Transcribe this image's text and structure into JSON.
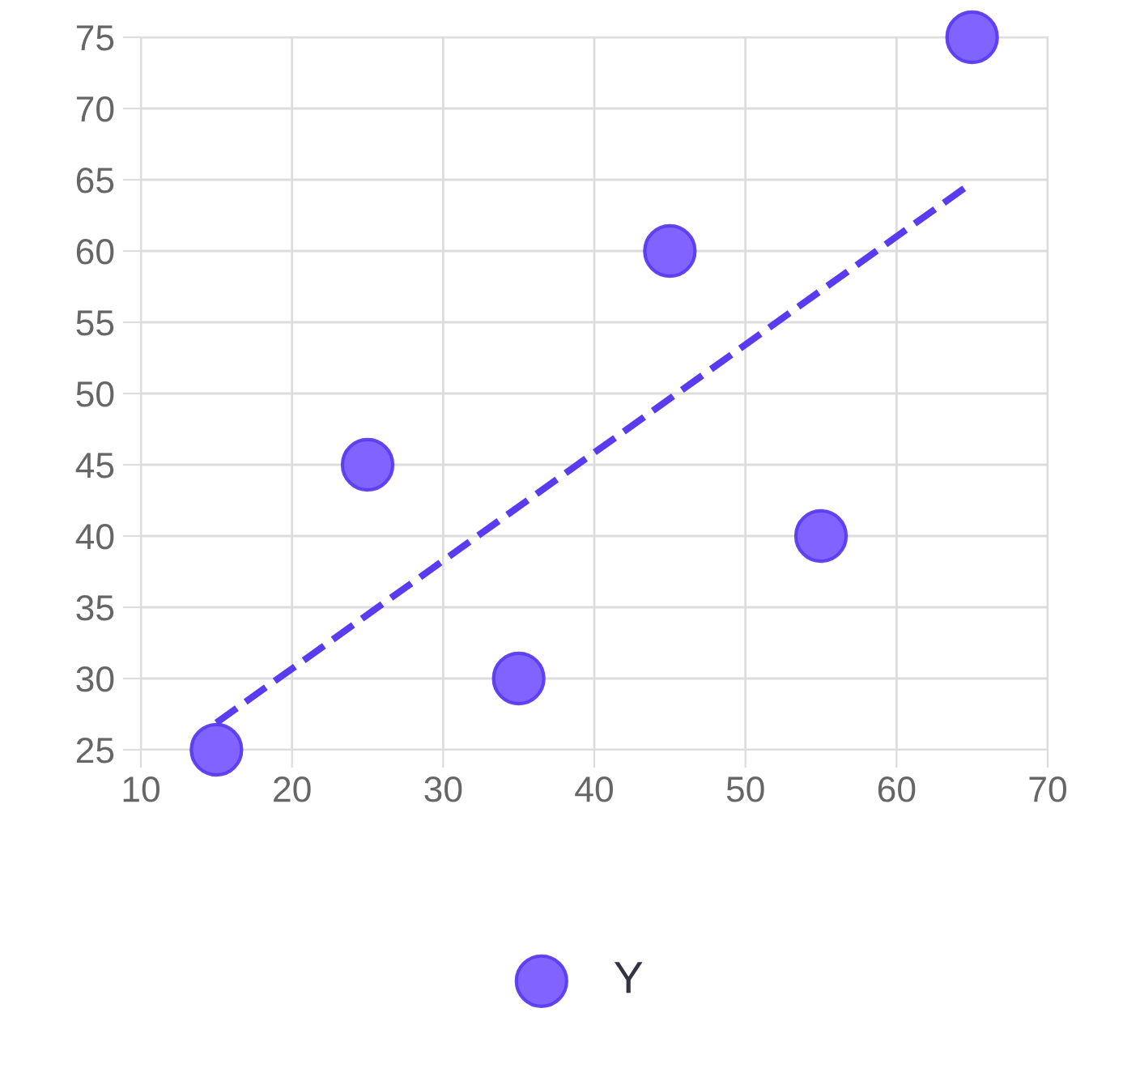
{
  "chart_data": {
    "type": "scatter",
    "xlim": [
      10,
      70
    ],
    "xticks": [
      10,
      20,
      30,
      40,
      50,
      60,
      70
    ],
    "ylim": [
      25,
      75
    ],
    "yticks": [
      25,
      30,
      35,
      40,
      45,
      50,
      55,
      60,
      65,
      70,
      75
    ],
    "grid": true,
    "legend": "bottom",
    "marker": "circle",
    "series": [
      {
        "name": "Y",
        "color": "#7a5cff",
        "x": [
          15,
          25,
          35,
          45,
          55,
          65
        ],
        "values": [
          25,
          45,
          30,
          60,
          40,
          75
        ]
      },
      {
        "type": "line",
        "color": "#5b3bf0",
        "line_style": "dashed",
        "marker": "none",
        "x": [
          15,
          65
        ],
        "values": [
          26.9,
          64.8
        ]
      }
    ]
  }
}
